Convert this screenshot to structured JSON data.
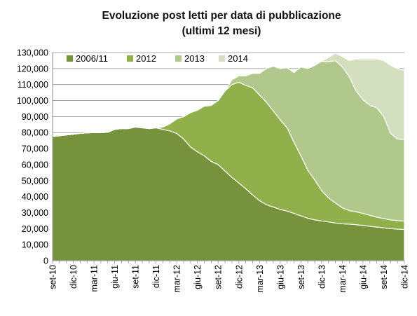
{
  "chart_data": {
    "type": "area",
    "stacked": true,
    "title": "Evoluzione post letti per data di pubblicazione",
    "subtitle": "(ultimi 12 mesi)",
    "xlabel": "",
    "ylabel": "",
    "ylim": [
      0,
      130000
    ],
    "y_ticks": [
      "0",
      "10,000",
      "20,000",
      "30,000",
      "40,000",
      "50,000",
      "60,000",
      "70,000",
      "80,000",
      "90,000",
      "100,000",
      "110,000",
      "120,000",
      "130,000"
    ],
    "x_tick_labels": [
      "set-10",
      "dic-10",
      "mar-11",
      "giu-11",
      "set-11",
      "dic-11",
      "mar-12",
      "giu-12",
      "set-12",
      "dic-12",
      "mar-13",
      "giu-13",
      "set-13",
      "dic-13",
      "mar-14",
      "giu-14",
      "set-14",
      "dic-14"
    ],
    "grid": "horizontal",
    "legend_position": "top-left",
    "x": [
      "set-10",
      "ott-10",
      "nov-10",
      "dic-10",
      "gen-11",
      "feb-11",
      "mar-11",
      "apr-11",
      "mag-11",
      "giu-11",
      "lug-11",
      "ago-11",
      "set-11",
      "ott-11",
      "nov-11",
      "dic-11",
      "gen-12",
      "feb-12",
      "mar-12",
      "apr-12",
      "mag-12",
      "giu-12",
      "lug-12",
      "ago-12",
      "set-12",
      "ott-12",
      "nov-12",
      "dic-12",
      "gen-13",
      "feb-13",
      "mar-13",
      "apr-13",
      "mag-13",
      "giu-13",
      "lug-13",
      "ago-13",
      "set-13",
      "ott-13",
      "nov-13",
      "dic-13",
      "gen-14",
      "feb-14",
      "mar-14",
      "apr-14",
      "mag-14",
      "giu-14",
      "lug-14",
      "ago-14",
      "set-14",
      "ott-14",
      "nov-14",
      "dic-14"
    ],
    "series": [
      {
        "name": "2006/11",
        "color": "#76923c",
        "values": [
          77500,
          78000,
          78500,
          79000,
          79500,
          79800,
          80000,
          80000,
          80200,
          82000,
          82500,
          82500,
          83500,
          83000,
          82500,
          83000,
          82000,
          81000,
          79500,
          76000,
          71000,
          68000,
          65500,
          62000,
          60000,
          56000,
          52000,
          48500,
          45000,
          41000,
          37500,
          35000,
          33500,
          32000,
          31000,
          29500,
          28000,
          26500,
          25500,
          24800,
          24200,
          23500,
          23000,
          22800,
          22500,
          22000,
          21500,
          21000,
          20500,
          20000,
          19700,
          19500
        ]
      },
      {
        "name": "2012",
        "color": "#8fb04a",
        "values": [
          0,
          0,
          0,
          0,
          0,
          0,
          0,
          0,
          0,
          0,
          0,
          0,
          0,
          0,
          0,
          0,
          1500,
          4500,
          9000,
          14000,
          21500,
          26000,
          31000,
          35000,
          40000,
          50000,
          58000,
          63000,
          64500,
          67000,
          66000,
          64000,
          60000,
          56000,
          52000,
          44500,
          37500,
          30000,
          25000,
          19000,
          15000,
          12500,
          10000,
          8500,
          8000,
          7500,
          6800,
          6200,
          5800,
          5500,
          5300,
          5200
        ]
      },
      {
        "name": "2013",
        "color": "#b0c88b",
        "values": [
          0,
          0,
          0,
          0,
          0,
          0,
          0,
          0,
          0,
          0,
          0,
          0,
          0,
          0,
          0,
          0,
          0,
          0,
          0,
          0,
          0,
          0,
          0,
          0,
          0,
          0,
          3000,
          4000,
          6000,
          9000,
          13500,
          21000,
          28000,
          32000,
          37500,
          43500,
          55500,
          63500,
          71500,
          80700,
          85000,
          89000,
          88000,
          83700,
          75500,
          71000,
          68700,
          68300,
          63700,
          54000,
          51000,
          51000
        ]
      },
      {
        "name": "2014",
        "color": "#d3dfbf",
        "values": [
          0,
          0,
          0,
          0,
          0,
          0,
          0,
          0,
          0,
          0,
          0,
          0,
          0,
          0,
          0,
          0,
          0,
          0,
          0,
          0,
          0,
          0,
          0,
          0,
          0,
          0,
          0,
          0,
          0,
          0,
          0,
          0,
          0,
          0,
          0,
          0,
          0,
          0,
          0,
          0,
          2800,
          4500,
          6500,
          10000,
          20000,
          25500,
          29000,
          30500,
          35000,
          42500,
          44000,
          43300
        ]
      }
    ]
  }
}
